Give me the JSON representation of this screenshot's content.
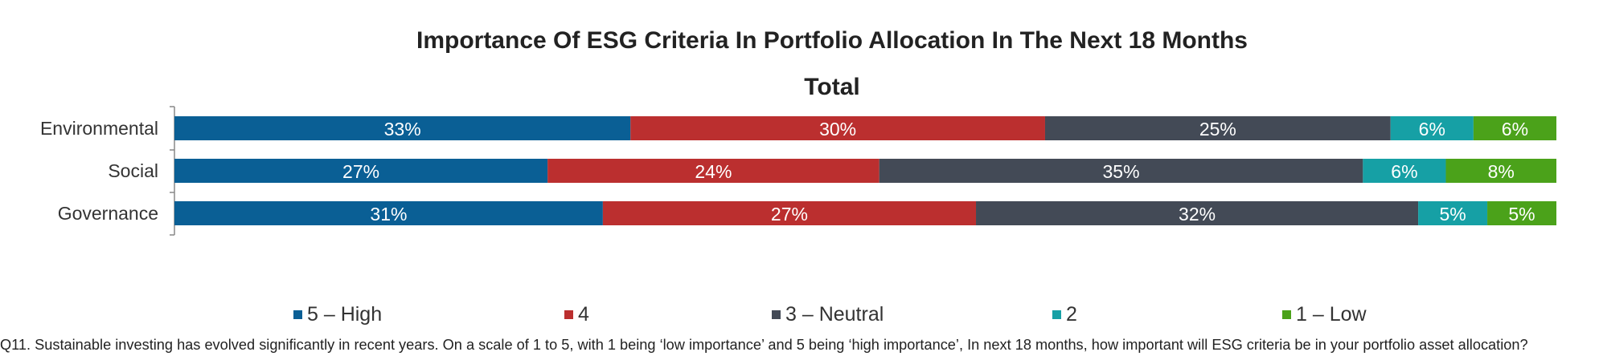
{
  "chart_data": {
    "type": "bar",
    "orientation": "horizontal",
    "stacked": true,
    "title": "Importance Of ESG Criteria In Portfolio Allocation In The Next 18 Months",
    "subtitle": "Total",
    "categories": [
      "Environmental",
      "Social",
      "Governance"
    ],
    "series": [
      {
        "name": "5 – High",
        "color": "#0a5f95",
        "values": [
          33,
          27,
          31
        ],
        "labels": [
          "33%",
          "27%",
          "31%"
        ]
      },
      {
        "name": "4",
        "color": "#bb2f2f",
        "values": [
          30,
          24,
          27
        ],
        "labels": [
          "30%",
          "24%",
          "27%"
        ]
      },
      {
        "name": "3 – Neutral",
        "color": "#434a56",
        "values": [
          25,
          35,
          32
        ],
        "labels": [
          "25%",
          "35%",
          "32%"
        ]
      },
      {
        "name": "2",
        "color": "#16a0a5",
        "values": [
          6,
          6,
          5
        ],
        "labels": [
          "6%",
          "6%",
          "5%"
        ]
      },
      {
        "name": "1 – Low",
        "color": "#4ba21a",
        "values": [
          6,
          8,
          5
        ],
        "labels": [
          "6%",
          "8%",
          "5%"
        ]
      }
    ],
    "legend_position": "bottom",
    "grid": false
  },
  "footnote": "Q11. Sustainable investing has evolved significantly in recent years. On a scale of 1 to 5, with 1 being ‘low importance’ and 5 being ‘high importance’, In next 18 months, how important will ESG criteria be in your portfolio asset allocation?"
}
